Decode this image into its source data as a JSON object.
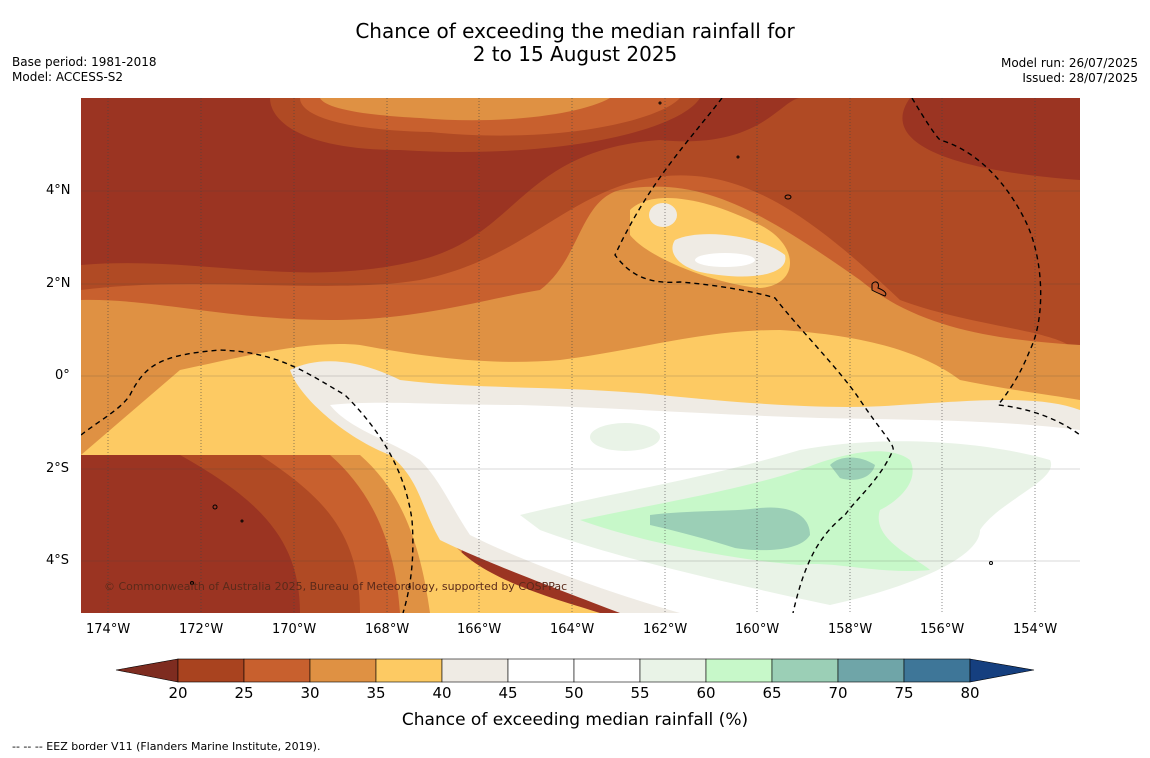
{
  "title": {
    "line1": "Chance of exceeding the median rainfall for",
    "line2": "2 to 15 August 2025"
  },
  "meta_left": {
    "base_period": "Base period: 1981-2018",
    "model": "Model: ACCESS-S2"
  },
  "meta_right": {
    "model_run": "Model run: 26/07/2025",
    "issued": "Issued: 28/07/2025"
  },
  "map": {
    "lat_labels": [
      "4°N",
      "2°N",
      "0°",
      "2°S",
      "4°S"
    ],
    "lon_labels": [
      "174°W",
      "172°W",
      "170°W",
      "168°W",
      "166°W",
      "164°W",
      "162°W",
      "160°W",
      "158°W",
      "156°W",
      "154°W"
    ],
    "copyright": "© Commonwealth of Australia 2025, Bureau of Meteorology, supported by COSPPac"
  },
  "colorbar": {
    "ticks": [
      "20",
      "25",
      "30",
      "35",
      "40",
      "45",
      "50",
      "55",
      "60",
      "65",
      "70",
      "75",
      "80"
    ],
    "colors": [
      "#a9431f",
      "#c8602e",
      "#df9143",
      "#fdca63",
      "#efebe4",
      "#ffffff",
      "#ffffff",
      "#e9f3e7",
      "#c7f8c9",
      "#9bcfb6",
      "#6fa5a8",
      "#3e7698"
    ],
    "extend_low_color": "#7e2c20",
    "extend_high_color": "#153f7f",
    "label": "Chance of exceeding median rainfall (%)"
  },
  "footnote": "--  --  -- EEZ border V11 (Flanders Marine Institute, 2019)."
}
